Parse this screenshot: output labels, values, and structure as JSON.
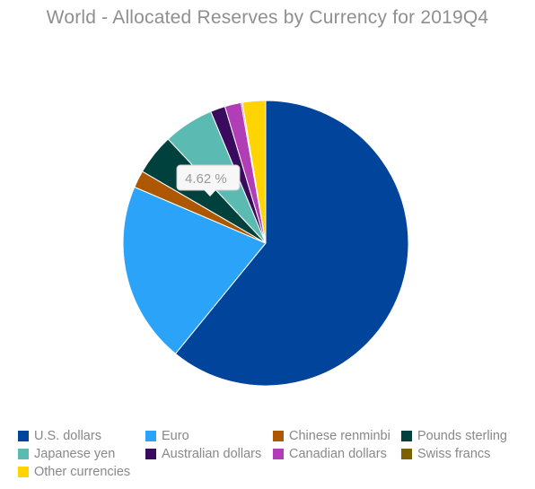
{
  "chart_data": {
    "type": "pie",
    "title": "World - Allocated Reserves by Currency for 2019Q4",
    "categories": [
      "U.S. dollars",
      "Euro",
      "Chinese renminbi",
      "Pounds sterling",
      "Japanese yen",
      "Australian dollars",
      "Canadian dollars",
      "Swiss francs",
      "Other currencies"
    ],
    "values": [
      60.89,
      20.54,
      1.96,
      4.62,
      5.7,
      1.67,
      1.86,
      0.15,
      2.61
    ],
    "colors": [
      "#00449b",
      "#2ba3f8",
      "#ad5800",
      "#00403d",
      "#5bbab2",
      "#3a0a5e",
      "#b13eb6",
      "#7d6000",
      "#ffd400"
    ],
    "start_angle_deg": 0,
    "direction": "clockwise",
    "legend_position": "bottom",
    "tooltip": {
      "category": "Pounds sterling",
      "text": "4.62 %"
    }
  }
}
